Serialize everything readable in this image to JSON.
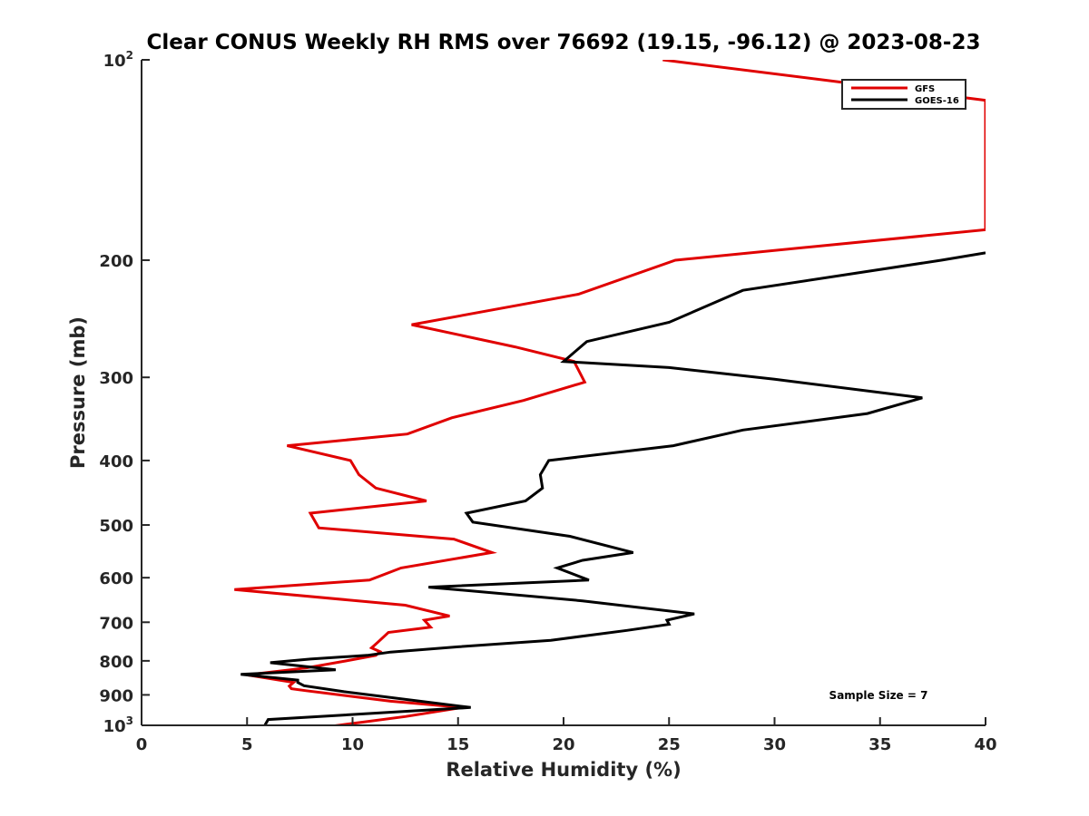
{
  "chart_data": {
    "type": "line",
    "title": "Clear CONUS Weekly RH RMS over 76692 (19.15, -96.12) @ 2023-08-23",
    "xlabel": "Relative Humidity (%)",
    "ylabel": "Pressure (mb)",
    "xlim": [
      0,
      40
    ],
    "ylim": [
      100,
      1000
    ],
    "yscale": "log",
    "yreversed": true,
    "grid": false,
    "legend_position": "top-right",
    "xticks": [
      0,
      5,
      10,
      15,
      20,
      25,
      30,
      35,
      40
    ],
    "yticks": [
      {
        "value": 100,
        "label": "10",
        "sup": "2"
      },
      {
        "value": 200,
        "label": "200",
        "sup": ""
      },
      {
        "value": 300,
        "label": "300",
        "sup": ""
      },
      {
        "value": 400,
        "label": "400",
        "sup": ""
      },
      {
        "value": 500,
        "label": "500",
        "sup": ""
      },
      {
        "value": 600,
        "label": "600",
        "sup": ""
      },
      {
        "value": 700,
        "label": "700",
        "sup": ""
      },
      {
        "value": 800,
        "label": "800",
        "sup": ""
      },
      {
        "value": 900,
        "label": "900",
        "sup": ""
      },
      {
        "value": 1000,
        "label": "10",
        "sup": "3"
      }
    ],
    "annotation": "Sample Size = 7",
    "series": [
      {
        "name": "GFS",
        "color": "#e00000",
        "points": [
          [
            24.7,
            100
          ],
          [
            40,
            115
          ],
          [
            40,
            180
          ],
          [
            25.3,
            200
          ],
          [
            20.7,
            225
          ],
          [
            12.8,
            250
          ],
          [
            17.7,
            270
          ],
          [
            20.5,
            284
          ],
          [
            21.0,
            305
          ],
          [
            18.1,
            325
          ],
          [
            14.7,
            345
          ],
          [
            12.6,
            365
          ],
          [
            6.9,
            380
          ],
          [
            9.9,
            400
          ],
          [
            10.3,
            420
          ],
          [
            11.1,
            440
          ],
          [
            13.5,
            460
          ],
          [
            8.0,
            480
          ],
          [
            8.4,
            505
          ],
          [
            14.8,
            525
          ],
          [
            16.6,
            550
          ],
          [
            12.3,
            580
          ],
          [
            10.8,
            605
          ],
          [
            4.4,
            625
          ],
          [
            12.5,
            660
          ],
          [
            14.6,
            685
          ],
          [
            13.4,
            695
          ],
          [
            13.7,
            712
          ],
          [
            11.7,
            725
          ],
          [
            11.2,
            750
          ],
          [
            10.9,
            765
          ],
          [
            11.3,
            775
          ],
          [
            11.1,
            785
          ],
          [
            9.7,
            800
          ],
          [
            7.8,
            820
          ],
          [
            5.0,
            840
          ],
          [
            7.2,
            862
          ],
          [
            7.0,
            873
          ],
          [
            7.1,
            881
          ],
          [
            7.8,
            887
          ],
          [
            11.8,
            920
          ],
          [
            15.2,
            940
          ],
          [
            12.5,
            970
          ],
          [
            8.8,
            1005
          ]
        ]
      },
      {
        "name": "GOES-16",
        "color": "#000000",
        "points": [
          [
            40,
            195
          ],
          [
            37.9,
            200
          ],
          [
            28.5,
            222
          ],
          [
            25.0,
            248
          ],
          [
            21.1,
            265
          ],
          [
            20.0,
            284
          ],
          [
            25.0,
            290
          ],
          [
            30.0,
            302
          ],
          [
            37.0,
            322
          ],
          [
            34.4,
            340
          ],
          [
            28.5,
            360
          ],
          [
            25.2,
            380
          ],
          [
            19.3,
            400
          ],
          [
            18.9,
            420
          ],
          [
            19.0,
            440
          ],
          [
            18.2,
            460
          ],
          [
            15.4,
            480
          ],
          [
            15.7,
            495
          ],
          [
            20.3,
            520
          ],
          [
            23.3,
            550
          ],
          [
            20.9,
            565
          ],
          [
            19.7,
            580
          ],
          [
            21.2,
            605
          ],
          [
            13.6,
            620
          ],
          [
            20.9,
            650
          ],
          [
            26.2,
            680
          ],
          [
            24.9,
            695
          ],
          [
            25.0,
            705
          ],
          [
            23.0,
            720
          ],
          [
            19.4,
            745
          ],
          [
            15.0,
            762
          ],
          [
            11.8,
            776
          ],
          [
            10.7,
            785
          ],
          [
            8.0,
            795
          ],
          [
            6.1,
            805
          ],
          [
            9.2,
            825
          ],
          [
            4.7,
            838
          ],
          [
            7.4,
            855
          ],
          [
            7.4,
            862
          ],
          [
            7.7,
            872
          ],
          [
            9.6,
            890
          ],
          [
            15.6,
            940
          ],
          [
            6.0,
            980
          ],
          [
            5.8,
            1005
          ]
        ]
      }
    ]
  }
}
